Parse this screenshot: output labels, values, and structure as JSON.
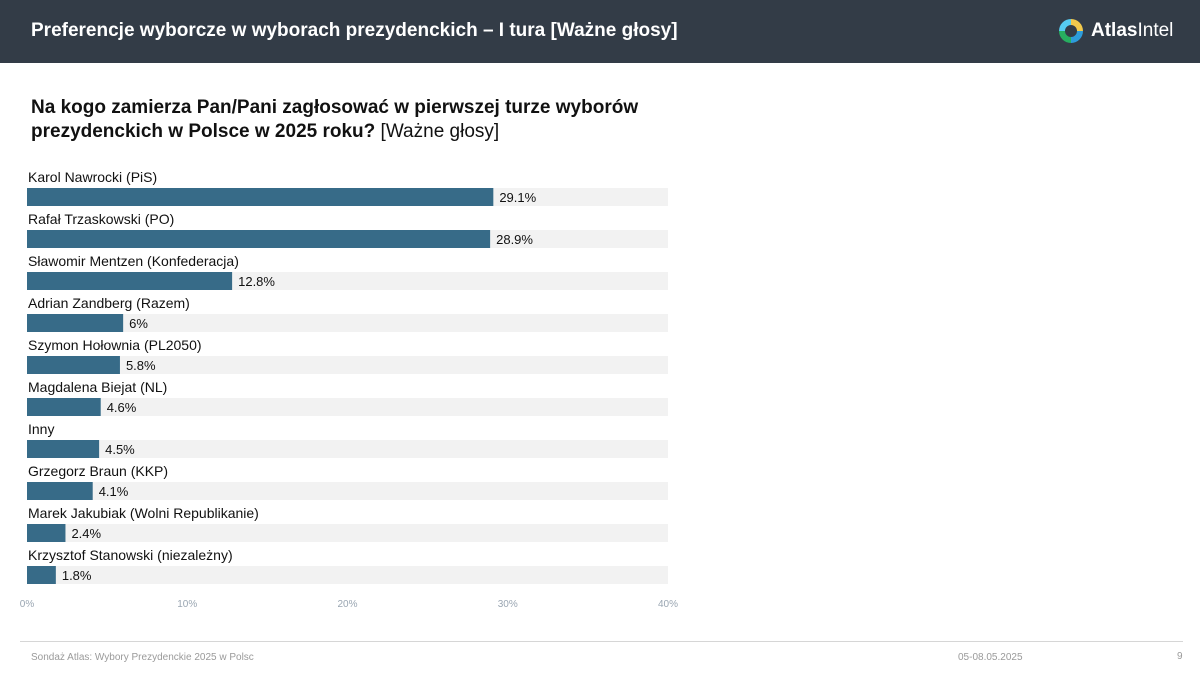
{
  "header": {
    "title": "Preferencje wyborcze w wyborach prezydenckich – I tura [Ważne głosy]",
    "brand_name_bold": "Atlas",
    "brand_name_rest": "Intel",
    "logo_icon": "atlasintel-logo-icon"
  },
  "question": {
    "text": "Na kogo zamierza Pan/Pani zagłosować w pierwszej turze wyborów prezydenckich w Polsce w 2025 roku?",
    "note": "[Ważne głosy]"
  },
  "chart_data": {
    "type": "bar",
    "orientation": "horizontal",
    "categories": [
      "Karol Nawrocki (PiS)",
      "Rafał Trzaskowski (PO)",
      "Sławomir Mentzen (Konfederacja)",
      "Adrian Zandberg (Razem)",
      "Szymon Hołownia (PL2050)",
      "Magdalena Biejat (NL)",
      "Inny",
      "Grzegorz Braun (KKP)",
      "Marek Jakubiak (Wolni Republikanie)",
      "Krzysztof Stanowski (niezależny)"
    ],
    "values": [
      29.1,
      28.9,
      12.8,
      6,
      5.8,
      4.6,
      4.5,
      4.1,
      2.4,
      1.8
    ],
    "value_labels": [
      "29.1%",
      "28.9%",
      "12.8%",
      "6%",
      "5.8%",
      "4.6%",
      "4.5%",
      "4.1%",
      "2.4%",
      "1.8%"
    ],
    "xlim": [
      0,
      40
    ],
    "x_ticks": [
      0,
      10,
      20,
      30,
      40
    ],
    "x_tick_labels": [
      "0%",
      "10%",
      "20%",
      "30%",
      "40%"
    ],
    "bar_color": "#376b88",
    "track_color": "#f2f2f2",
    "grid": false,
    "legend": "none"
  },
  "footer": {
    "source": "Sondaż Atlas: Wybory Prezydenckie 2025 w Polsc",
    "date": "05-08.05.2025",
    "page": "9"
  },
  "colors": {
    "header_bg": "#333c47",
    "bar": "#376b88",
    "track": "#f2f2f2"
  }
}
